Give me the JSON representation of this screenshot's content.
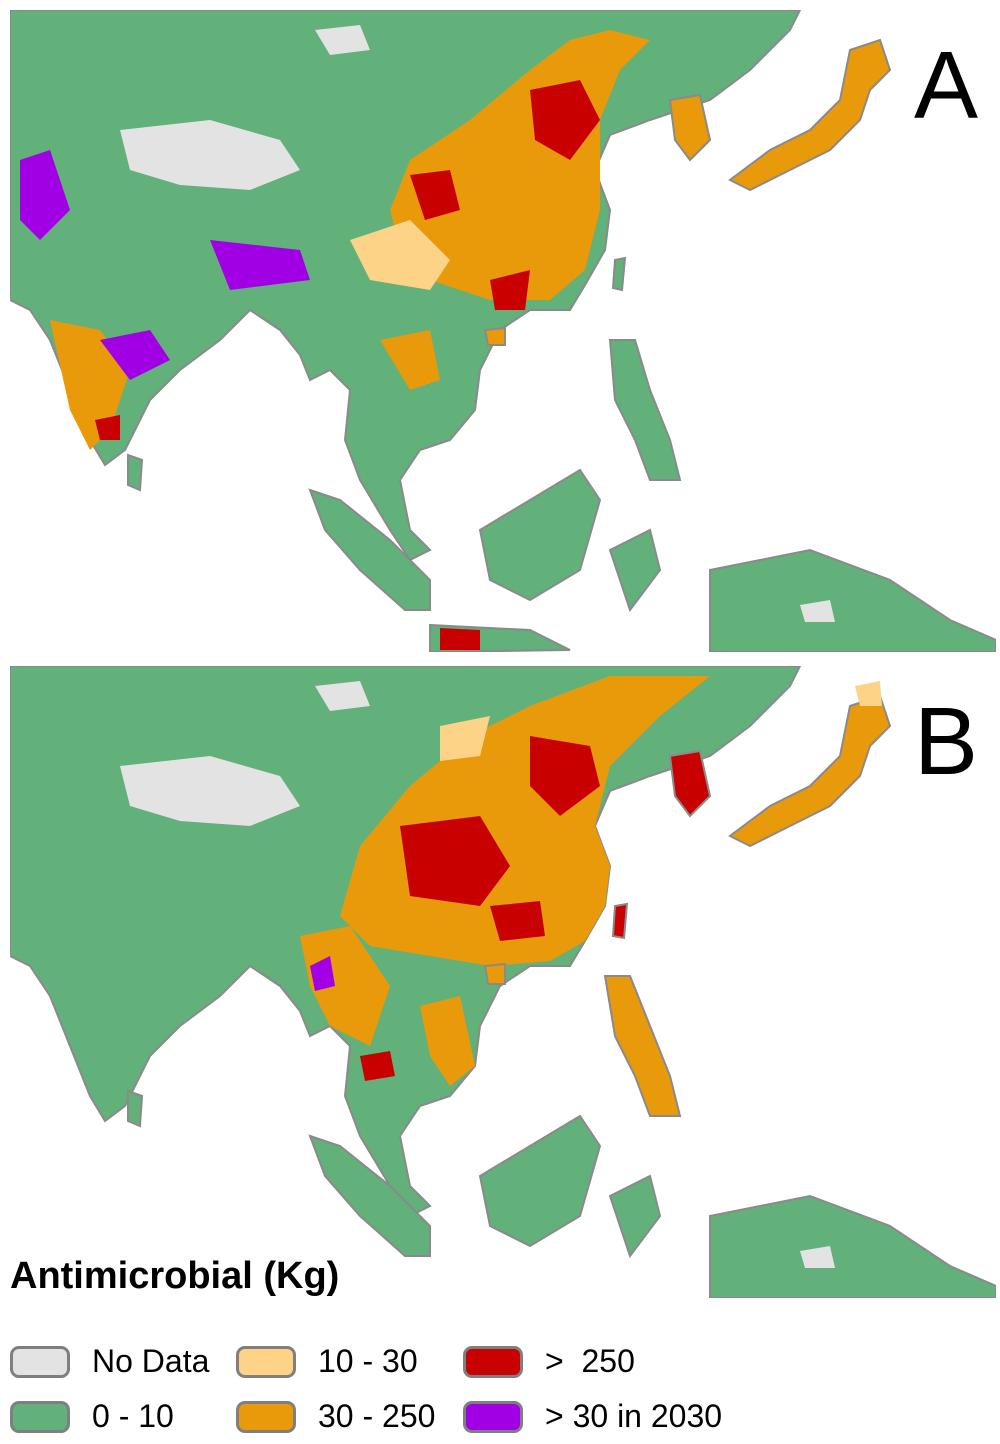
{
  "panels": [
    {
      "label": "A"
    },
    {
      "label": "B"
    }
  ],
  "legend": {
    "title": "Antimicrobial (Kg)",
    "items": [
      {
        "label": "No Data",
        "color": "#e3e3e3"
      },
      {
        "label": "0 - 10",
        "color": "#62b07a"
      },
      {
        "label": "10 - 30",
        "color": "#fdd388"
      },
      {
        "label": "30 - 250",
        "color": "#e89a0a"
      },
      {
        "label": ">  250",
        "color": "#c80000"
      },
      {
        "label": "> 30 in 2030",
        "color": "#a100e5"
      }
    ]
  },
  "colors": {
    "boundary": "#8a8a8a",
    "sea": "#ffffff"
  }
}
